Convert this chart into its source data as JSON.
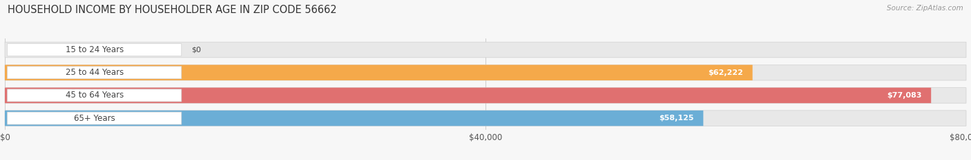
{
  "title": "HOUSEHOLD INCOME BY HOUSEHOLDER AGE IN ZIP CODE 56662",
  "source_text": "Source: ZipAtlas.com",
  "categories": [
    "15 to 24 Years",
    "25 to 44 Years",
    "45 to 64 Years",
    "65+ Years"
  ],
  "values": [
    0,
    62222,
    77083,
    58125
  ],
  "bar_colors": [
    "#f48fb1",
    "#f5a94a",
    "#e07070",
    "#6baed6"
  ],
  "value_labels": [
    "$0",
    "$62,222",
    "$77,083",
    "$58,125"
  ],
  "xlim": [
    0,
    80000
  ],
  "xticks": [
    0,
    40000,
    80000
  ],
  "xticklabels": [
    "$0",
    "$40,000",
    "$80,000"
  ],
  "background_color": "#f7f7f7",
  "bar_bg_color": "#e8e8e8",
  "title_fontsize": 10.5,
  "label_fontsize": 8.5,
  "value_fontsize": 8,
  "source_fontsize": 7.5,
  "bar_height": 0.68,
  "figsize": [
    14.06,
    2.33
  ]
}
